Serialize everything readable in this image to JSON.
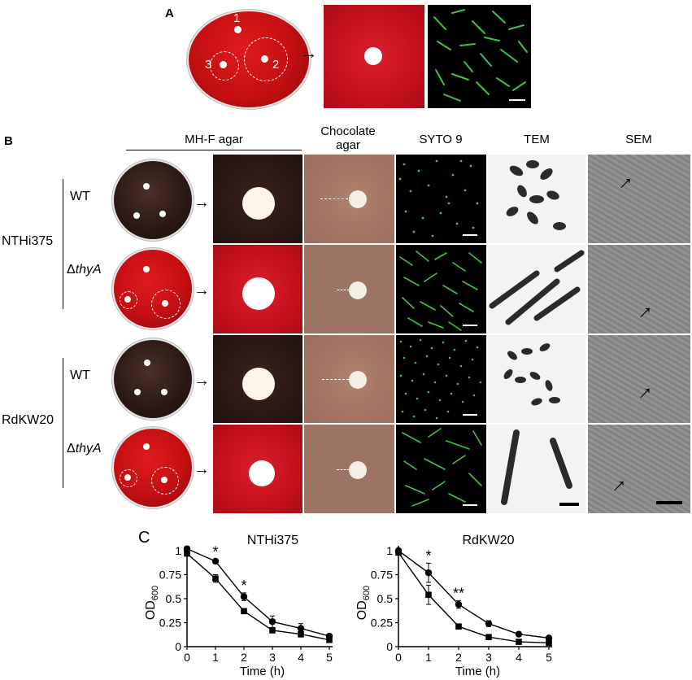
{
  "panel_a": {
    "letter": "A",
    "plate_labels": [
      "1",
      "2",
      "3"
    ]
  },
  "panel_b": {
    "letter": "B",
    "headers": {
      "mhf": "MH-F agar",
      "choc_line1": "Chocolate",
      "choc_line2": "agar",
      "syto": "SYTO 9",
      "tem": "TEM",
      "sem": "SEM"
    },
    "strains": [
      {
        "name": "NTHi375",
        "rows": [
          {
            "genotype": "WT",
            "italic_part": ""
          },
          {
            "genotype": "Δ",
            "italic_part": "thyA"
          }
        ]
      },
      {
        "name": "RdKW20",
        "rows": [
          {
            "genotype": "WT",
            "italic_part": ""
          },
          {
            "genotype": "Δ",
            "italic_part": "thyA"
          }
        ]
      }
    ]
  },
  "panel_c": {
    "letter": "C",
    "colors": {
      "line": "#000000"
    }
  },
  "chart_data": [
    {
      "type": "line",
      "title": "NTHi375",
      "xlabel": "Time (h)",
      "ylabel": "OD600",
      "xlim": [
        0,
        5
      ],
      "ylim": [
        0,
        1
      ],
      "xticks": [
        "0",
        "1",
        "2",
        "3",
        "4",
        "5"
      ],
      "yticks": [
        "0",
        "0.25",
        "0.5",
        "0.75",
        "1"
      ],
      "x": [
        0,
        1,
        2,
        3,
        4,
        5
      ],
      "series": [
        {
          "marker": "circle",
          "values": [
            1.02,
            0.89,
            0.52,
            0.26,
            0.19,
            0.11
          ],
          "errors": [
            0.01,
            0.02,
            0.04,
            0.06,
            0.05,
            0.02
          ]
        },
        {
          "marker": "square",
          "values": [
            0.97,
            0.71,
            0.37,
            0.17,
            0.13,
            0.07
          ],
          "errors": [
            0.01,
            0.04,
            0.02,
            0.02,
            0.03,
            0.01
          ]
        }
      ],
      "annotations": [
        {
          "x": 1,
          "text": "*"
        },
        {
          "x": 2,
          "text": "*"
        }
      ]
    },
    {
      "type": "line",
      "title": "RdKW20",
      "xlabel": "Time (h)",
      "ylabel": "OD600",
      "xlim": [
        0,
        5
      ],
      "ylim": [
        0,
        1
      ],
      "xticks": [
        "0",
        "1",
        "2",
        "3",
        "4",
        "5"
      ],
      "yticks": [
        "0",
        "0.25",
        "0.5",
        "0.75",
        "1"
      ],
      "x": [
        0,
        1,
        2,
        3,
        4,
        5
      ],
      "series": [
        {
          "marker": "circle",
          "values": [
            1.0,
            0.77,
            0.44,
            0.24,
            0.13,
            0.09
          ],
          "errors": [
            0.01,
            0.1,
            0.04,
            0.03,
            0.02,
            0.01
          ]
        },
        {
          "marker": "square",
          "values": [
            0.98,
            0.54,
            0.21,
            0.1,
            0.05,
            0.04
          ],
          "errors": [
            0.01,
            0.1,
            0.01,
            0.01,
            0.01,
            0.01
          ]
        }
      ],
      "annotations": [
        {
          "x": 1,
          "text": "*"
        },
        {
          "x": 2,
          "text": "**"
        }
      ]
    }
  ]
}
